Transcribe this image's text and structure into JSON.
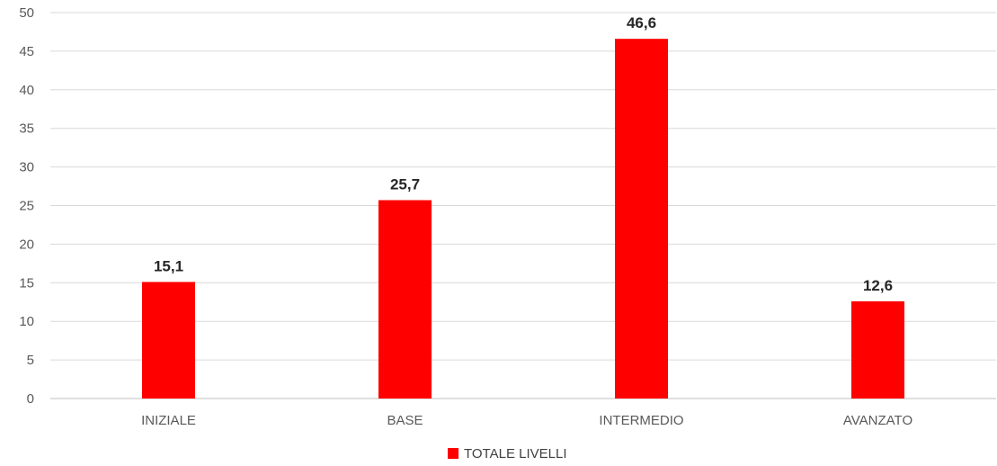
{
  "chart_data": {
    "type": "bar",
    "categories": [
      "INIZIALE",
      "BASE",
      "INTERMEDIO",
      "AVANZATO"
    ],
    "series": [
      {
        "name": "TOTALE LIVELLI",
        "values": [
          15.1,
          25.7,
          46.6,
          12.6
        ],
        "data_labels": [
          "15,1",
          "25,7",
          "46,6",
          "12,6"
        ],
        "color": "#ff0000"
      }
    ],
    "title": "",
    "xlabel": "",
    "ylabel": "",
    "ylim": [
      0,
      50
    ],
    "yticks": [
      0,
      5,
      10,
      15,
      20,
      25,
      30,
      35,
      40,
      45,
      50
    ],
    "grid": true,
    "legend_position": "bottom-center",
    "colors": {
      "bar": "#ff0000",
      "gridline": "#d9d9d9",
      "text": "#595959"
    }
  }
}
